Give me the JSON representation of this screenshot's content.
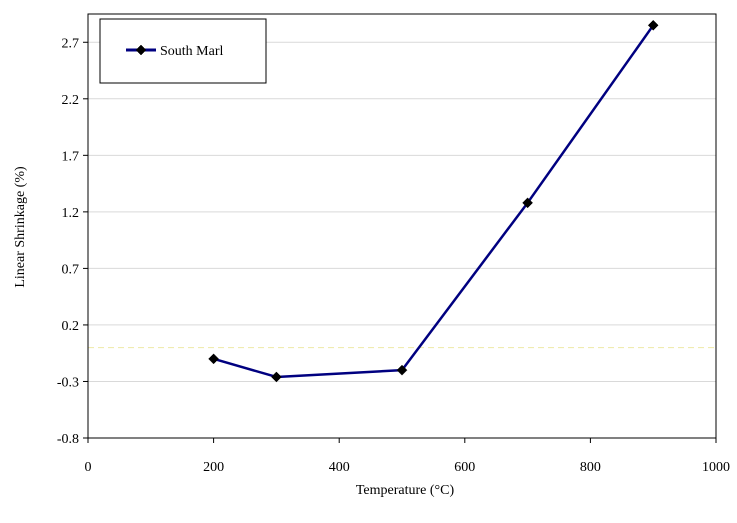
{
  "chart_data": {
    "type": "line",
    "xlabel": "Temperature (°C)",
    "ylabel": "Linear Shrinkage (%)",
    "xlim": [
      0,
      1000
    ],
    "ylim": [
      -0.8,
      2.95
    ],
    "xticks": [
      0,
      200,
      400,
      600,
      800,
      1000
    ],
    "yticks": [
      -0.8,
      -0.3,
      0.2,
      0.7,
      1.2,
      1.7,
      2.2,
      2.7
    ],
    "xtick_labels": [
      "0",
      "200",
      "400",
      "600",
      "800",
      "1000"
    ],
    "ytick_labels": [
      "-0.8",
      "-0.3",
      "0.2",
      "0.7",
      "1.2",
      "1.7",
      "2.2",
      "2.7"
    ],
    "grid": true,
    "zero_line": true,
    "legend_position": "top-left",
    "series": [
      {
        "name": "South Marl",
        "color": "#000080",
        "marker": "diamond",
        "x": [
          200,
          300,
          500,
          700,
          900
        ],
        "y": [
          -0.1,
          -0.26,
          -0.2,
          1.28,
          2.85
        ]
      }
    ]
  }
}
